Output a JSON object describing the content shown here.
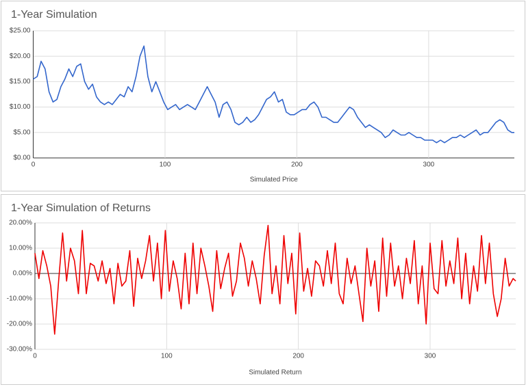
{
  "chart_data": [
    {
      "type": "line",
      "title": "1-Year Simulation",
      "x_label": "Simulated Price",
      "color": "#3366cc",
      "xlim": [
        0,
        365
      ],
      "xticks": [
        0,
        100,
        200,
        300
      ],
      "ylim": [
        0,
        25
      ],
      "yticks": [
        {
          "value": 0,
          "label": "$0.00"
        },
        {
          "value": 5,
          "label": "$5.00"
        },
        {
          "value": 10,
          "label": "$10.00"
        },
        {
          "value": 15,
          "label": "$15.00"
        },
        {
          "value": 20,
          "label": "$20.00"
        },
        {
          "value": 25,
          "label": "$25.00"
        }
      ],
      "grid": true,
      "x": [
        0,
        3,
        6,
        9,
        12,
        15,
        18,
        21,
        24,
        27,
        30,
        33,
        36,
        39,
        42,
        45,
        48,
        51,
        54,
        57,
        60,
        63,
        66,
        69,
        72,
        75,
        78,
        81,
        84,
        87,
        90,
        93,
        96,
        99,
        102,
        105,
        108,
        111,
        114,
        117,
        120,
        123,
        126,
        129,
        132,
        135,
        138,
        141,
        144,
        147,
        150,
        153,
        156,
        159,
        162,
        165,
        168,
        171,
        174,
        177,
        180,
        183,
        186,
        189,
        192,
        195,
        198,
        201,
        204,
        207,
        210,
        213,
        216,
        219,
        222,
        225,
        228,
        231,
        234,
        237,
        240,
        243,
        246,
        249,
        252,
        255,
        258,
        261,
        264,
        267,
        270,
        273,
        276,
        279,
        282,
        285,
        288,
        291,
        294,
        297,
        300,
        303,
        306,
        309,
        312,
        315,
        318,
        321,
        324,
        327,
        330,
        333,
        336,
        339,
        342,
        345,
        348,
        351,
        354,
        357,
        360,
        363,
        365
      ],
      "values": [
        15.5,
        16,
        19,
        17.5,
        13,
        11,
        11.5,
        14,
        15.5,
        17.5,
        16,
        18,
        18.5,
        15,
        13.5,
        14.5,
        12,
        11,
        10.5,
        11,
        10.5,
        11.5,
        12.5,
        12,
        14,
        13,
        16,
        20,
        22,
        16,
        13,
        15,
        13,
        11,
        9.5,
        10,
        10.5,
        9.5,
        10,
        10.5,
        10,
        9.5,
        11,
        12.5,
        14,
        12.5,
        11,
        8,
        10.5,
        11,
        9.5,
        7,
        6.5,
        7,
        8,
        7,
        7.5,
        8.5,
        10,
        11.5,
        12,
        13,
        11,
        11.5,
        9,
        8.5,
        8.5,
        9,
        9.5,
        9.5,
        10.5,
        11,
        10,
        8,
        8,
        7.5,
        7,
        7,
        8,
        9,
        10,
        9.5,
        8,
        7,
        6,
        6.5,
        6,
        5.5,
        5,
        4,
        4.5,
        5.5,
        5,
        4.5,
        4.5,
        5,
        4.5,
        4,
        4,
        3.5,
        3.5,
        3.5,
        3,
        3.5,
        3,
        3.5,
        4,
        4,
        4.5,
        4,
        4.5,
        5,
        5.5,
        4.5,
        5,
        5,
        6,
        7,
        7.5,
        7,
        5.5,
        5,
        5
      ]
    },
    {
      "type": "line",
      "title": "1-Year Simulation of Returns",
      "x_label": "Simulated Return",
      "color": "#ee0000",
      "xlim": [
        0,
        365
      ],
      "xticks": [
        0,
        100,
        200,
        300
      ],
      "ylim": [
        -30,
        20
      ],
      "yticks": [
        {
          "value": -30,
          "label": "-30.00%"
        },
        {
          "value": -20,
          "label": "-20.00%"
        },
        {
          "value": -10,
          "label": "-10.00%"
        },
        {
          "value": 0,
          "label": "0.00%"
        },
        {
          "value": 10,
          "label": "10.00%"
        },
        {
          "value": 20,
          "label": "20.00%"
        }
      ],
      "grid": true,
      "x": [
        0,
        3,
        6,
        9,
        12,
        15,
        18,
        21,
        24,
        27,
        30,
        33,
        36,
        39,
        42,
        45,
        48,
        51,
        54,
        57,
        60,
        63,
        66,
        69,
        72,
        75,
        78,
        81,
        84,
        87,
        90,
        93,
        96,
        99,
        102,
        105,
        108,
        111,
        114,
        117,
        120,
        123,
        126,
        129,
        132,
        135,
        138,
        141,
        144,
        147,
        150,
        153,
        156,
        159,
        162,
        165,
        168,
        171,
        174,
        177,
        180,
        183,
        186,
        189,
        192,
        195,
        198,
        201,
        204,
        207,
        210,
        213,
        216,
        219,
        222,
        225,
        228,
        231,
        234,
        237,
        240,
        243,
        246,
        249,
        252,
        255,
        258,
        261,
        264,
        267,
        270,
        273,
        276,
        279,
        282,
        285,
        288,
        291,
        294,
        297,
        300,
        303,
        306,
        309,
        312,
        315,
        318,
        321,
        324,
        327,
        330,
        333,
        336,
        339,
        342,
        345,
        348,
        351,
        354,
        357,
        360,
        363,
        365
      ],
      "values": [
        8,
        -2,
        9,
        3,
        -5,
        -24,
        -3,
        16,
        -3,
        10,
        5,
        -8,
        17,
        -8,
        4,
        3,
        -3,
        5,
        -4,
        2,
        -12,
        4,
        -5,
        -3,
        9,
        -13,
        6,
        -2,
        5,
        15,
        -3,
        12,
        -10,
        17,
        -7,
        5,
        -2,
        -14,
        8,
        -12,
        12,
        -8,
        10,
        3,
        -5,
        -15,
        9,
        -6,
        2,
        8,
        -9,
        -3,
        12,
        6,
        -5,
        5,
        -2,
        -12,
        7,
        19,
        -8,
        3,
        -12,
        15,
        -4,
        8,
        -16,
        16,
        -7,
        2,
        -9,
        5,
        3,
        -5,
        9,
        -4,
        12,
        -8,
        -12,
        6,
        -4,
        3,
        -8,
        -19,
        10,
        -5,
        5,
        -15,
        14,
        -9,
        12,
        -5,
        3,
        -10,
        6,
        -4,
        13,
        -12,
        3,
        -20,
        12,
        -6,
        -8,
        13,
        -5,
        5,
        -4,
        14,
        -10,
        8,
        -12,
        3,
        -7,
        15,
        -4,
        12,
        -8,
        -17,
        -10,
        6,
        -5,
        -2,
        -3
      ]
    }
  ]
}
